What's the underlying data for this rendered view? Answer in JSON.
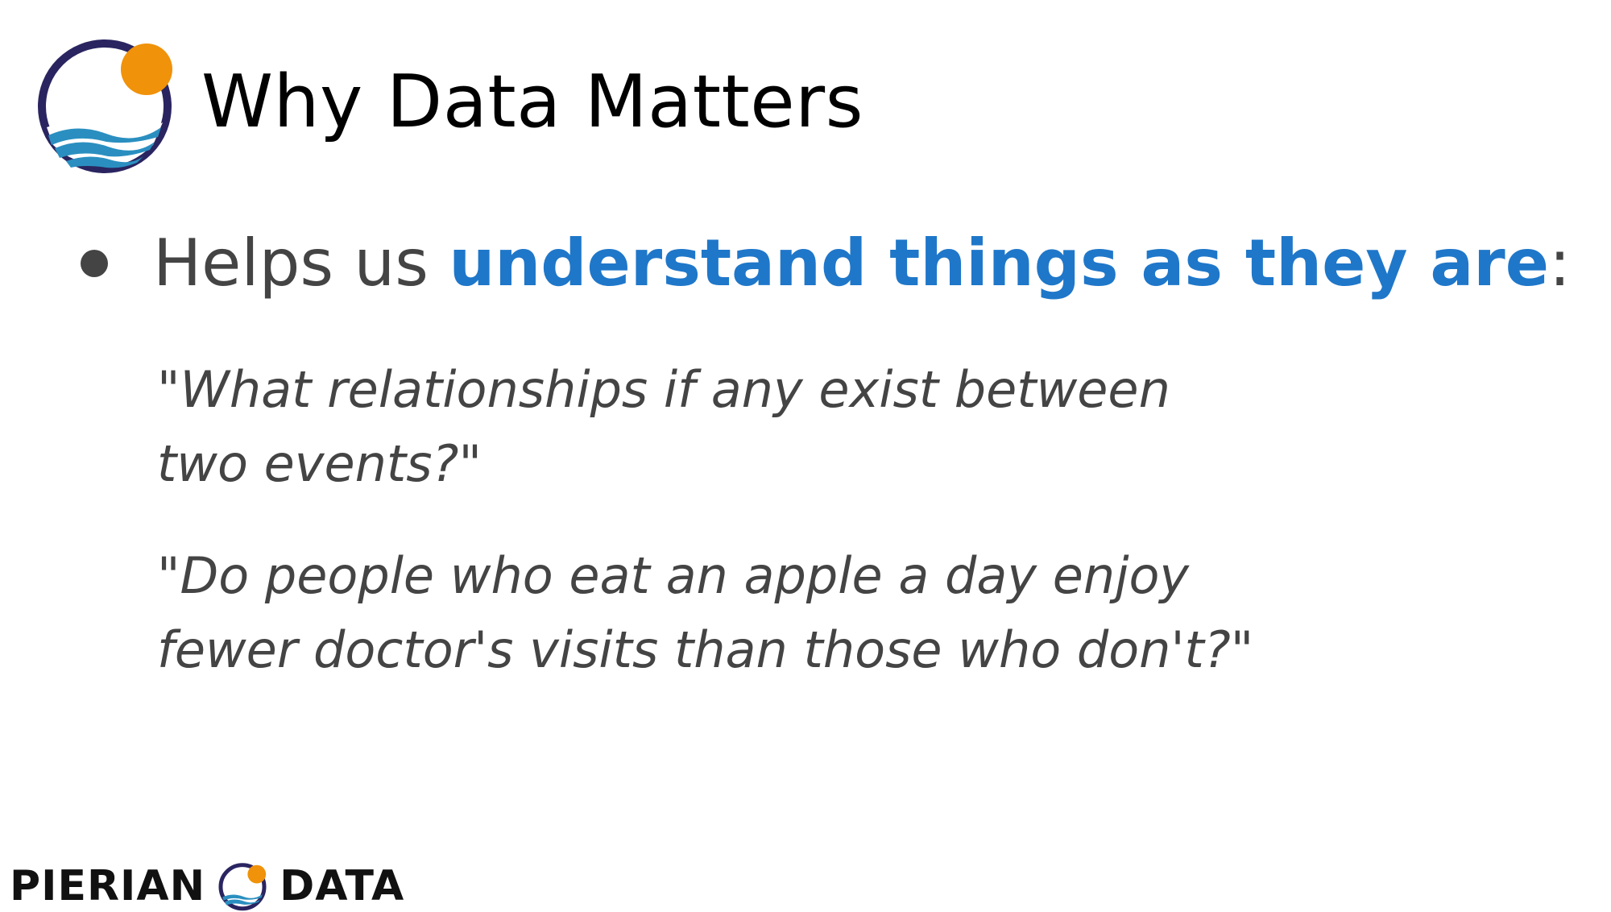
{
  "header": {
    "title": "Why Data Matters"
  },
  "bullet": {
    "lead": "Helps us ",
    "highlight": "understand things as they are",
    "trail": ":"
  },
  "quotes": [
    {
      "lines": [
        "\"What relationships if any exist between",
        "two events?\""
      ]
    },
    {
      "lines": [
        "\"Do people who eat an apple a day enjoy",
        "fewer doctor's visits than those who don't?\""
      ]
    }
  ],
  "footer": {
    "brand_left": "PIERIAN",
    "brand_right": "DATA"
  },
  "colors": {
    "highlight": "#1f77c9",
    "body_text": "#444444",
    "logo_ring": "#2a2560",
    "logo_sun": "#f0920a",
    "logo_water": "#2a8fc0"
  },
  "icons": {
    "logo": "pierian-data-logo-icon"
  }
}
